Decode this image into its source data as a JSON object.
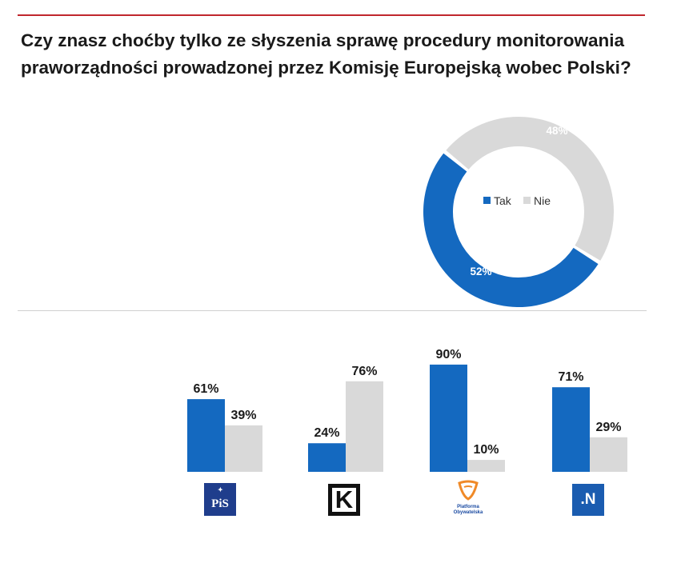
{
  "title": {
    "line1": "Czy znasz choćby tylko ze słyszenia sprawę procedury monitorowania",
    "line2": "praworządności prowadzonej przez Komisję Europejską wobec Polski?"
  },
  "colors": {
    "tak": "#1469c0",
    "nie": "#d9d9d9",
    "rule": "#c0272d"
  },
  "chart_data": [
    {
      "type": "pie",
      "variant": "donut",
      "title": "",
      "categories": [
        "Tak",
        "Nie"
      ],
      "values": [
        52,
        48
      ],
      "data_labels": [
        "52%",
        "48%"
      ],
      "legend": {
        "placement": "center",
        "entries": [
          "Tak",
          "Nie"
        ]
      }
    },
    {
      "type": "bar",
      "title": "",
      "categories": [
        "PiS",
        "Kukiz'15",
        "Platforma Obywatelska",
        "Nowoczesna"
      ],
      "series": [
        {
          "name": "Tak",
          "values": [
            61,
            24,
            90,
            71
          ],
          "labels": [
            "61%",
            "24%",
            "90%",
            "71%"
          ]
        },
        {
          "name": "Nie",
          "values": [
            39,
            76,
            10,
            29
          ],
          "labels": [
            "39%",
            "76%",
            "10%",
            "29%"
          ]
        }
      ],
      "ylim": [
        0,
        100
      ],
      "xlabel": "",
      "ylabel": "",
      "grid": false
    }
  ],
  "logos": {
    "pis": "PiS",
    "kukiz": "K",
    "po": [
      "Platforma",
      "Obywatelska"
    ],
    "n": ".N"
  }
}
